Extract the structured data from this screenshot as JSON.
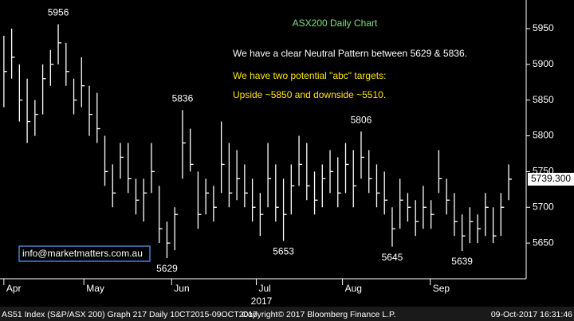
{
  "chart_data": {
    "type": "ohlc",
    "title": "ASX200 Daily Chart",
    "annotations_text": [
      "We have a clear Neutral Pattern between 5629 & 5836.",
      "We have two potential \"abc\" targets:",
      "Upside ~5850 and downside ~5510."
    ],
    "contact": "info@marketmatters.com.au",
    "footer": [
      "AS51 Index (S&P/ASX 200) Graph 217  Daily 10CT2015-09OCT2017",
      "Copyright© 2017 Bloomberg Finance L.P.",
      "09-Oct-2017 16:31:46"
    ],
    "year_label": "2017",
    "color": "#ffffff",
    "x": [
      0,
      1,
      2,
      3,
      4,
      5,
      6,
      7,
      8,
      9,
      10,
      11,
      12,
      13,
      14,
      15,
      16,
      17,
      18,
      19,
      20,
      21,
      22,
      23,
      24,
      25,
      26,
      27,
      28,
      29,
      30,
      31,
      32,
      33,
      34,
      35,
      36,
      37,
      38,
      39,
      40,
      41,
      42,
      43,
      44,
      45,
      46,
      47,
      48,
      49,
      50,
      51,
      52,
      53,
      54,
      55,
      56,
      57,
      58,
      59,
      60,
      61,
      62,
      63,
      64,
      65
    ],
    "high": [
      5940,
      5950,
      5900,
      5880,
      5850,
      5900,
      5920,
      5956,
      5930,
      5880,
      5910,
      5870,
      5860,
      5800,
      5760,
      5790,
      5790,
      5740,
      5740,
      5790,
      5730,
      5680,
      5700,
      5836,
      5810,
      5750,
      5740,
      5730,
      5820,
      5790,
      5780,
      5760,
      5740,
      5720,
      5790,
      5760,
      5740,
      5760,
      5800,
      5790,
      5750,
      5760,
      5780,
      5770,
      5790,
      5780,
      5806,
      5780,
      5760,
      5750,
      5700,
      5740,
      5720,
      5710,
      5730,
      5710,
      5780,
      5740,
      5720,
      5690,
      5700,
      5690,
      5720,
      5700,
      5720,
      5760
    ],
    "low": [
      5840,
      5880,
      5820,
      5790,
      5800,
      5830,
      5870,
      5900,
      5870,
      5830,
      5840,
      5800,
      5790,
      5730,
      5700,
      5740,
      5720,
      5690,
      5680,
      5720,
      5650,
      5629,
      5640,
      5740,
      5750,
      5670,
      5690,
      5680,
      5720,
      5700,
      5710,
      5700,
      5680,
      5660,
      5700,
      5680,
      5653,
      5690,
      5730,
      5710,
      5690,
      5700,
      5720,
      5700,
      5720,
      5700,
      5740,
      5720,
      5700,
      5690,
      5645,
      5670,
      5680,
      5660,
      5670,
      5670,
      5720,
      5690,
      5660,
      5639,
      5650,
      5650,
      5660,
      5650,
      5660,
      5710
    ],
    "close": [
      5890,
      5910,
      5850,
      5820,
      5830,
      5880,
      5900,
      5930,
      5890,
      5850,
      5870,
      5830,
      5810,
      5750,
      5720,
      5770,
      5740,
      5710,
      5720,
      5750,
      5670,
      5650,
      5690,
      5790,
      5760,
      5690,
      5720,
      5700,
      5760,
      5720,
      5740,
      5720,
      5700,
      5690,
      5740,
      5700,
      5690,
      5730,
      5760,
      5730,
      5710,
      5740,
      5750,
      5720,
      5760,
      5730,
      5770,
      5740,
      5720,
      5710,
      5670,
      5710,
      5700,
      5680,
      5700,
      5690,
      5740,
      5710,
      5680,
      5660,
      5680,
      5670,
      5700,
      5660,
      5700,
      5739.3
    ],
    "last_price": {
      "value": 5739.3,
      "label": "5739.300"
    },
    "annotations": [
      {
        "text": "5956",
        "x": 7
      },
      {
        "text": "5836",
        "x": 23
      },
      {
        "text": "5806",
        "x": 46
      },
      {
        "text": "5629",
        "x": 21
      },
      {
        "text": "5653",
        "x": 36
      },
      {
        "text": "5645",
        "x": 50
      },
      {
        "text": "5639",
        "x": 59
      }
    ],
    "xlim": [
      -0.5,
      67.25
    ],
    "xticks": [
      {
        "value": 0,
        "label": "Apr"
      },
      {
        "value": 10.3,
        "label": "May"
      },
      {
        "value": 21.6,
        "label": "Jun"
      },
      {
        "value": 32.5,
        "label": "Jul"
      },
      {
        "value": 43.6,
        "label": "Aug"
      },
      {
        "value": 54.9,
        "label": "Sep"
      }
    ],
    "ylim": [
      5600,
      5990
    ],
    "yticks": [
      5650,
      5700,
      5750,
      5800,
      5850,
      5900,
      5950
    ],
    "grid": false
  }
}
